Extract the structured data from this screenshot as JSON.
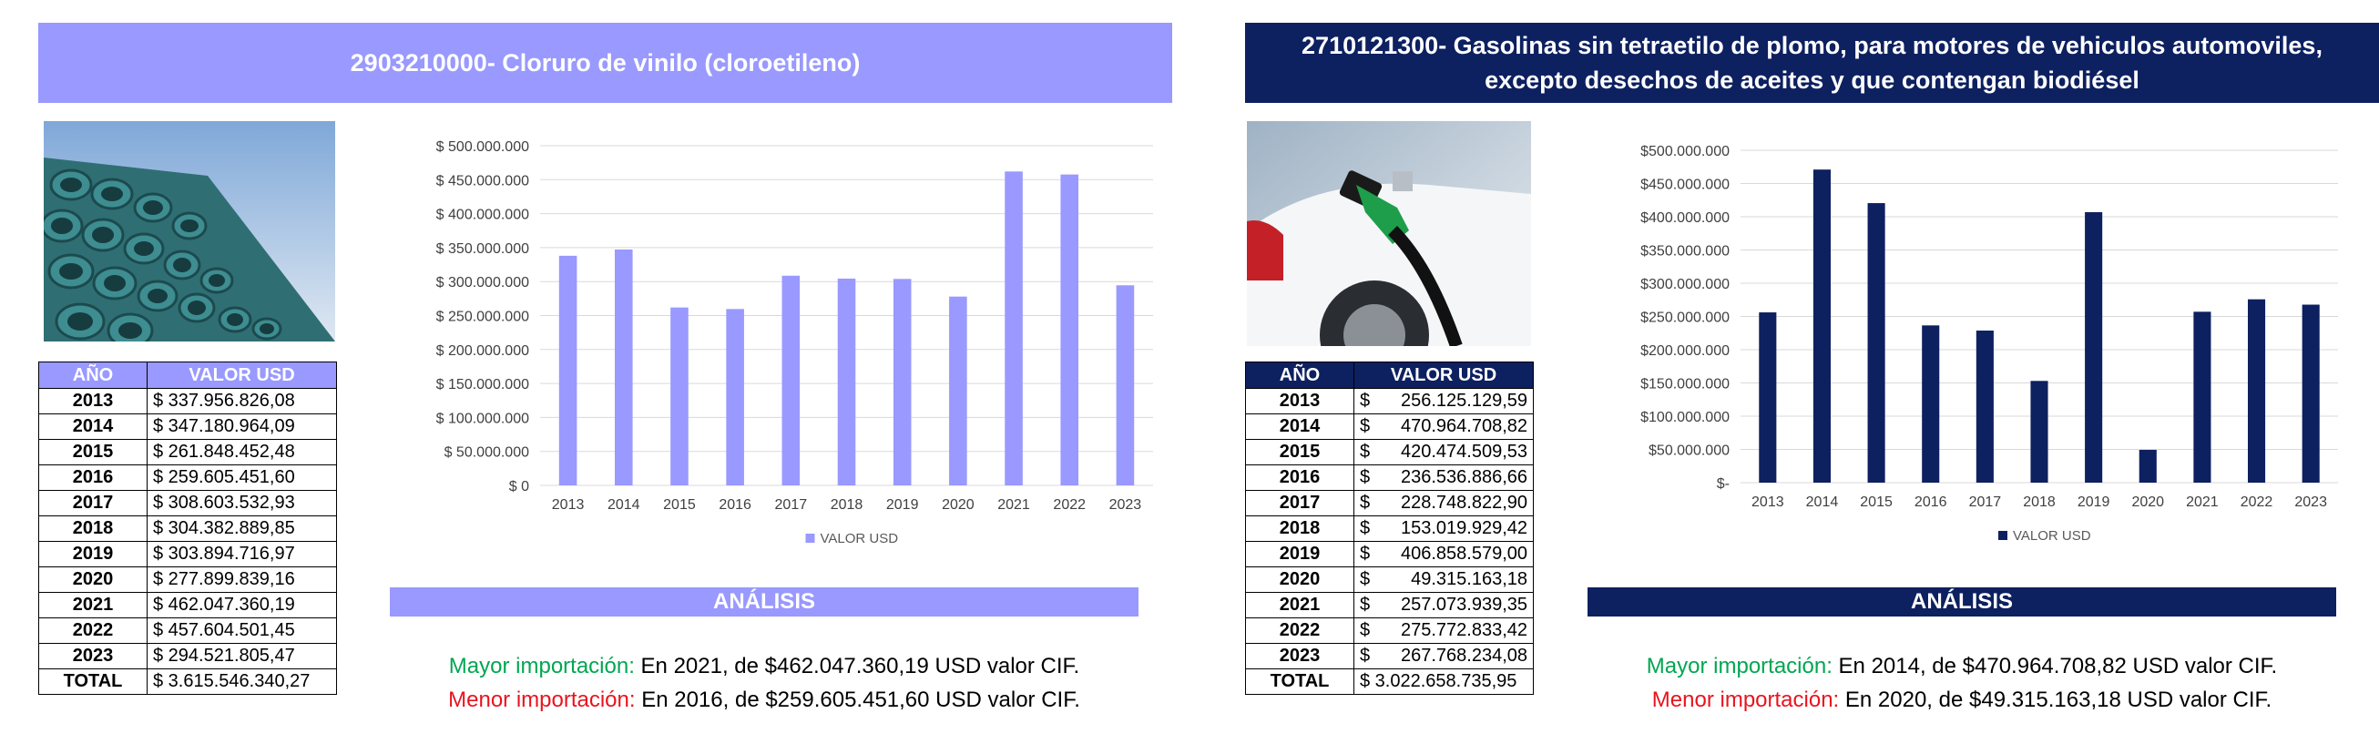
{
  "colors": {
    "left_accent": "#9999ff",
    "right_accent": "#0d2060",
    "green": "#00a651",
    "red": "#e8141e"
  },
  "left": {
    "title": "2903210000- Cloruro de vinilo (cloroetileno)",
    "photo_icon": "pvc-pipes-photo",
    "table": {
      "headers": [
        "AÑO",
        "VALOR USD"
      ],
      "rows": [
        {
          "year": "2013",
          "value": "$ 337.956.826,08"
        },
        {
          "year": "2014",
          "value": "$ 347.180.964,09"
        },
        {
          "year": "2015",
          "value": "$ 261.848.452,48"
        },
        {
          "year": "2016",
          "value": "$ 259.605.451,60"
        },
        {
          "year": "2017",
          "value": "$ 308.603.532,93"
        },
        {
          "year": "2018",
          "value": "$ 304.382.889,85"
        },
        {
          "year": "2019",
          "value": "$ 303.894.716,97"
        },
        {
          "year": "2020",
          "value": "$ 277.899.839,16"
        },
        {
          "year": "2021",
          "value": "$ 462.047.360,19"
        },
        {
          "year": "2022",
          "value": "$ 457.604.501,45"
        },
        {
          "year": "2023",
          "value": "$ 294.521.805,47"
        }
      ],
      "total_label": "TOTAL",
      "total_value": "$ 3.615.546.340,27"
    },
    "analysis": {
      "heading": "ANÁLISIS",
      "mayor_label": "Mayor importación:",
      "mayor_text": " En 2021, de $462.047.360,19 USD valor CIF.",
      "menor_label": "Menor importación:",
      "menor_text": " En 2016, de $259.605.451,60 USD valor CIF."
    }
  },
  "right": {
    "title_line1": "2710121300- Gasolinas sin tetraetilo de plomo, para motores de vehiculos automoviles,",
    "title_line2": "excepto desechos de aceites y que contengan biodiésel",
    "photo_icon": "fuel-nozzle-car-photo",
    "table": {
      "headers": [
        "AÑO",
        "VALOR USD"
      ],
      "rows": [
        {
          "year": "2013",
          "cur": "$",
          "value": "256.125.129,59"
        },
        {
          "year": "2014",
          "cur": "$",
          "value": "470.964.708,82"
        },
        {
          "year": "2015",
          "cur": "$",
          "value": "420.474.509,53"
        },
        {
          "year": "2016",
          "cur": "$",
          "value": "236.536.886,66"
        },
        {
          "year": "2017",
          "cur": "$",
          "value": "228.748.822,90"
        },
        {
          "year": "2018",
          "cur": "$",
          "value": "153.019.929,42"
        },
        {
          "year": "2019",
          "cur": "$",
          "value": "406.858.579,00"
        },
        {
          "year": "2020",
          "cur": "$",
          "value": "49.315.163,18"
        },
        {
          "year": "2021",
          "cur": "$",
          "value": "257.073.939,35"
        },
        {
          "year": "2022",
          "cur": "$",
          "value": "275.772.833,42"
        },
        {
          "year": "2023",
          "cur": "$",
          "value": "267.768.234,08"
        }
      ],
      "total_label": "TOTAL",
      "total_value": "$ 3.022.658.735,95"
    },
    "analysis": {
      "heading": "ANÁLISIS",
      "mayor_label": "Mayor importación:",
      "mayor_text": " En 2014, de $470.964.708,82 USD valor CIF.",
      "menor_label": "Menor importación:",
      "menor_text": " En 2020, de $49.315.163,18 USD valor CIF."
    }
  },
  "chart_data": [
    {
      "type": "bar",
      "categories": [
        "2013",
        "2014",
        "2015",
        "2016",
        "2017",
        "2018",
        "2019",
        "2020",
        "2021",
        "2022",
        "2023"
      ],
      "series": [
        {
          "name": "VALOR USD",
          "values": [
            337956826.08,
            347180964.09,
            261848452.48,
            259605451.6,
            308603532.93,
            304382889.85,
            303894716.97,
            277899839.16,
            462047360.19,
            457604501.45,
            294521805.47
          ]
        }
      ],
      "ylim": [
        0,
        500000000
      ],
      "yticks": [
        "$ 0",
        "$ 50.000.000",
        "$ 100.000.000",
        "$ 150.000.000",
        "$ 200.000.000",
        "$ 250.000.000",
        "$ 300.000.000",
        "$ 350.000.000",
        "$ 400.000.000",
        "$ 450.000.000",
        "$ 500.000.000"
      ],
      "grid": true,
      "legend": "bottom",
      "color": "#9999ff"
    },
    {
      "type": "bar",
      "categories": [
        "2013",
        "2014",
        "2015",
        "2016",
        "2017",
        "2018",
        "2019",
        "2020",
        "2021",
        "2022",
        "2023"
      ],
      "series": [
        {
          "name": "VALOR USD",
          "values": [
            256125129.59,
            470964708.82,
            420474509.53,
            236536886.66,
            228748822.9,
            153019929.42,
            406858579.0,
            49315163.18,
            257073939.35,
            275772833.42,
            267768234.08
          ]
        }
      ],
      "ylim": [
        0,
        500000000
      ],
      "yticks": [
        "$-",
        "$50.000.000",
        "$100.000.000",
        "$150.000.000",
        "$200.000.000",
        "$250.000.000",
        "$300.000.000",
        "$350.000.000",
        "$400.000.000",
        "$450.000.000",
        "$500.000.000"
      ],
      "grid": true,
      "legend": "bottom",
      "color": "#0d2060"
    }
  ]
}
